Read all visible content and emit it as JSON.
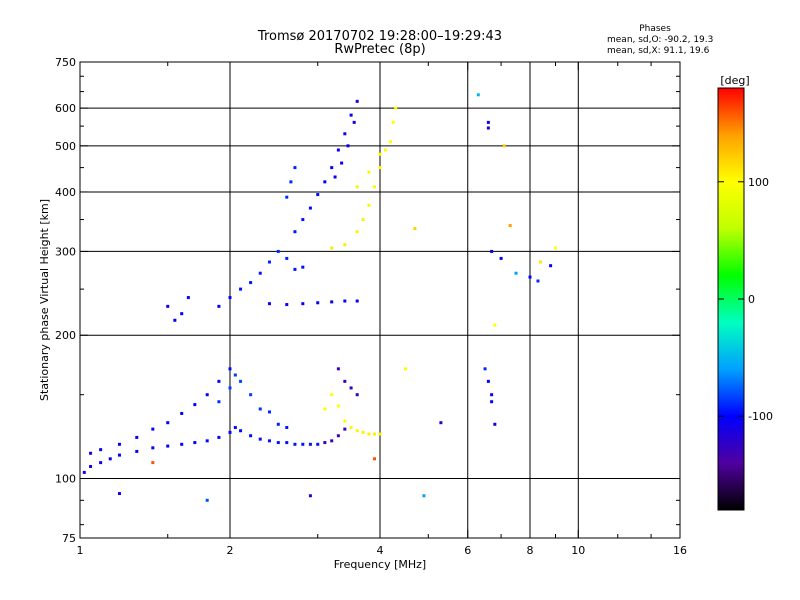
{
  "chart_data": {
    "type": "scatter",
    "title": "Tromsø 20170702 19:28:00–19:29:43",
    "subtitle": "RwPretec (8p)",
    "xlabel": "Frequency [MHz]",
    "ylabel": "Stationary phase Virtual Height [km]",
    "x_scale": "log",
    "y_scale": "log",
    "xlim": [
      1,
      16
    ],
    "ylim": [
      75,
      750
    ],
    "x_ticks": [
      1,
      2,
      4,
      6,
      8,
      10,
      16
    ],
    "x_minor_ticks": [
      1.5,
      3,
      5,
      7,
      9,
      12,
      14
    ],
    "y_ticks": [
      75,
      100,
      200,
      300,
      400,
      500,
      600,
      750
    ],
    "x_gridlines": [
      2,
      4,
      6,
      8,
      10
    ],
    "y_gridlines": [
      100,
      200,
      300,
      400,
      500,
      600
    ],
    "grid": true,
    "stats": {
      "heading": "Phases",
      "line_o": "mean, sd,O: -90.2, 19.3",
      "line_x": "mean, sd,X:  91.1, 19.6"
    },
    "colorbar": {
      "label": "[deg]",
      "range": [
        -180,
        180
      ],
      "ticks": [
        100,
        0,
        -100
      ],
      "colors": [
        "#000000",
        "#5000a0",
        "#0000ff",
        "#00a0ff",
        "#00ffc0",
        "#00ff00",
        "#c0ff00",
        "#ffff00",
        "#ffa000",
        "#ff0000"
      ]
    },
    "series": [
      {
        "values": [
          [
            1.02,
            103,
            -112
          ],
          [
            1.05,
            106,
            -110
          ],
          [
            1.1,
            108,
            -108
          ],
          [
            1.15,
            110,
            -106
          ],
          [
            1.2,
            112,
            -105
          ],
          [
            1.3,
            114,
            -104
          ],
          [
            1.4,
            116,
            -103
          ],
          [
            1.5,
            117,
            -102
          ],
          [
            1.6,
            118,
            -101
          ],
          [
            1.7,
            119,
            -100
          ],
          [
            1.8,
            120,
            -100
          ],
          [
            1.9,
            122,
            -99
          ],
          [
            2.0,
            125,
            -98
          ]
        ]
      },
      {
        "values": [
          [
            1.05,
            113,
            -110
          ],
          [
            1.1,
            115,
            -108
          ],
          [
            1.2,
            118,
            -106
          ],
          [
            1.3,
            122,
            -104
          ],
          [
            1.4,
            127,
            -103
          ],
          [
            1.5,
            131,
            -102
          ],
          [
            1.6,
            137,
            -101
          ],
          [
            1.7,
            143,
            -100
          ],
          [
            1.8,
            150,
            -100
          ],
          [
            1.9,
            160,
            -99
          ],
          [
            2.0,
            170,
            -98
          ]
        ]
      },
      {
        "values": [
          [
            2.05,
            128,
            -98
          ],
          [
            2.1,
            126,
            -98
          ],
          [
            2.2,
            123,
            -97
          ],
          [
            2.3,
            121,
            -97
          ],
          [
            2.4,
            120,
            -96
          ],
          [
            2.5,
            119,
            -96
          ],
          [
            2.6,
            119,
            -96
          ],
          [
            2.7,
            118,
            -95
          ],
          [
            2.8,
            118,
            -95
          ],
          [
            2.9,
            118,
            -95
          ],
          [
            3.0,
            118,
            -95
          ],
          [
            3.1,
            119,
            -128
          ],
          [
            3.2,
            120,
            -128
          ],
          [
            3.3,
            123,
            -128
          ],
          [
            3.4,
            127,
            -128
          ]
        ]
      },
      {
        "values": [
          [
            1.9,
            145,
            -88
          ],
          [
            2.0,
            155,
            -85
          ],
          [
            2.05,
            165,
            -85
          ],
          [
            2.1,
            160,
            -84
          ],
          [
            2.2,
            150,
            -86
          ],
          [
            2.3,
            140,
            -88
          ],
          [
            2.4,
            138,
            -90
          ],
          [
            2.5,
            130,
            -92
          ],
          [
            2.6,
            128,
            -95
          ]
        ]
      },
      {
        "values": [
          [
            3.1,
            140,
            98
          ],
          [
            3.2,
            150,
            100
          ],
          [
            3.3,
            142,
            100
          ],
          [
            3.4,
            132,
            102
          ],
          [
            3.5,
            128,
            103
          ],
          [
            3.6,
            126,
            104
          ],
          [
            3.7,
            125,
            105
          ],
          [
            3.8,
            124,
            106
          ],
          [
            3.9,
            124,
            107
          ],
          [
            4.0,
            124,
            108
          ]
        ]
      },
      {
        "values": [
          [
            3.3,
            170,
            -130
          ],
          [
            3.4,
            160,
            -128
          ],
          [
            3.5,
            155,
            -126
          ],
          [
            3.6,
            150,
            -125
          ]
        ]
      },
      {
        "values": [
          [
            1.5,
            230,
            -105
          ],
          [
            1.55,
            215,
            -102
          ],
          [
            1.6,
            222,
            -100
          ],
          [
            1.65,
            240,
            -98
          ]
        ]
      },
      {
        "values": [
          [
            1.9,
            230,
            -100
          ],
          [
            2.0,
            240,
            -98
          ],
          [
            2.1,
            250,
            -96
          ],
          [
            2.2,
            258,
            -95
          ],
          [
            2.3,
            270,
            -94
          ],
          [
            2.4,
            285,
            -92
          ],
          [
            2.5,
            300,
            -90
          ],
          [
            2.6,
            290,
            -92
          ],
          [
            2.7,
            275,
            -95
          ],
          [
            2.8,
            278,
            -96
          ]
        ]
      },
      {
        "values": [
          [
            2.4,
            233,
            -105
          ],
          [
            2.6,
            232,
            -105
          ],
          [
            2.8,
            233,
            -104
          ],
          [
            3.0,
            234,
            -104
          ],
          [
            3.2,
            235,
            -103
          ],
          [
            3.4,
            236,
            -103
          ],
          [
            3.6,
            236,
            -102
          ]
        ]
      },
      {
        "values": [
          [
            2.7,
            330,
            -95
          ],
          [
            2.8,
            350,
            -96
          ],
          [
            2.9,
            370,
            -97
          ],
          [
            3.0,
            395,
            -98
          ],
          [
            3.1,
            420,
            -100
          ],
          [
            3.2,
            450,
            -102
          ],
          [
            3.3,
            490,
            -104
          ],
          [
            3.4,
            530,
            -106
          ],
          [
            3.5,
            580,
            -108
          ],
          [
            3.6,
            620,
            -110
          ],
          [
            3.55,
            560,
            -108
          ],
          [
            3.45,
            500,
            -106
          ],
          [
            3.35,
            460,
            -104
          ],
          [
            3.25,
            430,
            -102
          ]
        ]
      },
      {
        "values": [
          [
            2.6,
            390,
            -90
          ],
          [
            2.65,
            420,
            -90
          ],
          [
            2.7,
            450,
            -92
          ]
        ]
      },
      {
        "values": [
          [
            3.2,
            305,
            110
          ],
          [
            3.4,
            310,
            108
          ],
          [
            3.6,
            330,
            106
          ],
          [
            3.7,
            350,
            105
          ],
          [
            3.8,
            375,
            104
          ],
          [
            3.9,
            410,
            103
          ],
          [
            4.0,
            450,
            102
          ],
          [
            4.1,
            490,
            101
          ],
          [
            4.2,
            510,
            100
          ],
          [
            4.25,
            560,
            100
          ],
          [
            4.3,
            600,
            98
          ],
          [
            4.0,
            480,
            102
          ],
          [
            3.8,
            440,
            104
          ],
          [
            3.6,
            410,
            105
          ]
        ]
      },
      {
        "values": [
          [
            6.3,
            640,
            -50
          ],
          [
            6.6,
            560,
            -110
          ],
          [
            6.6,
            545,
            -110
          ],
          [
            6.7,
            300,
            -100
          ],
          [
            7.0,
            290,
            -100
          ],
          [
            7.5,
            270,
            -60
          ],
          [
            8.0,
            265,
            -100
          ],
          [
            8.3,
            260,
            -90
          ],
          [
            8.8,
            280,
            -100
          ],
          [
            6.5,
            170,
            -90
          ],
          [
            6.6,
            160,
            -100
          ],
          [
            6.7,
            150,
            -100
          ],
          [
            6.7,
            145,
            -100
          ],
          [
            6.8,
            130,
            -110
          ],
          [
            7.1,
            500,
            120
          ],
          [
            7.3,
            340,
            140
          ],
          [
            8.4,
            285,
            110
          ],
          [
            9.0,
            305,
            100
          ]
        ]
      },
      {
        "values": [
          [
            1.8,
            90,
            -80
          ],
          [
            2.9,
            92,
            -120
          ],
          [
            4.9,
            92,
            -60
          ],
          [
            5.3,
            131,
            -120
          ],
          [
            1.4,
            108,
            160
          ],
          [
            1.2,
            93,
            -110
          ],
          [
            3.9,
            110,
            160
          ],
          [
            4.5,
            170,
            100
          ],
          [
            4.7,
            335,
            120
          ],
          [
            6.8,
            210,
            100
          ]
        ]
      }
    ]
  }
}
